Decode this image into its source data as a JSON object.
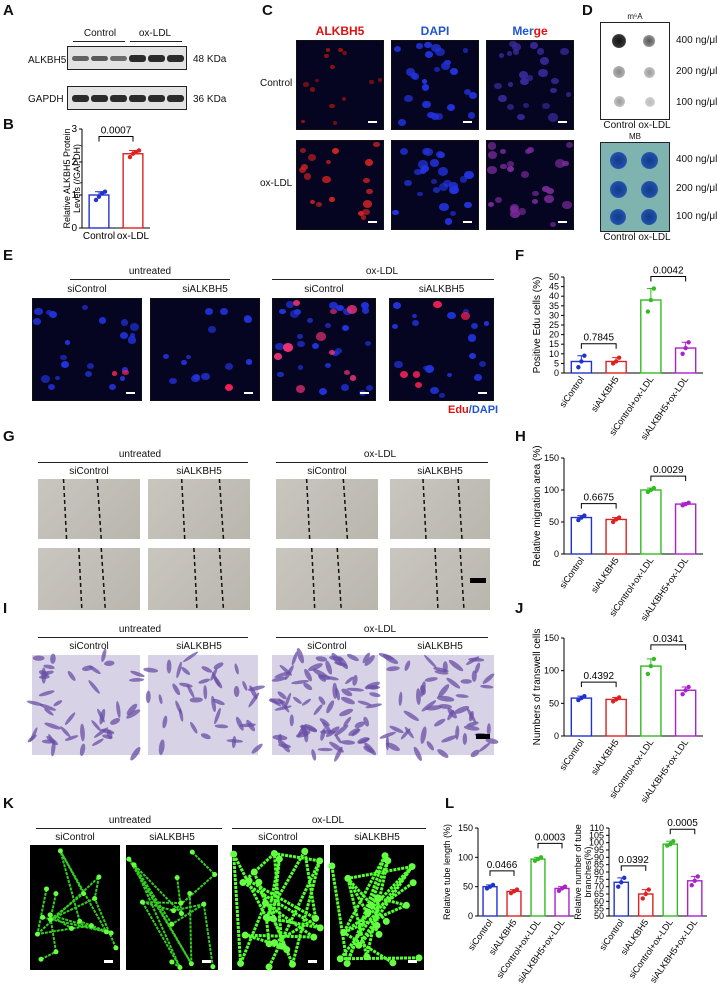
{
  "panels": {
    "A": "A",
    "B": "B",
    "C": "C",
    "D": "D",
    "E": "E",
    "F": "F",
    "G": "G",
    "H": "H",
    "I": "I",
    "J": "J",
    "K": "K",
    "L": "L"
  },
  "panelA": {
    "group_control": "Control",
    "group_oxldl": "ox-LDL",
    "row1": "ALKBH5",
    "row2": "GAPDH",
    "kda1": "48 KDa",
    "kda2": "36 KDa"
  },
  "panelC": {
    "col1": "ALKBH5",
    "col2": "DAPI",
    "col3_a": "Mer",
    "col3_b": "ge",
    "row1": "Control",
    "row2": "ox-LDL"
  },
  "panelD": {
    "top_title": "m⁶A",
    "bottom_title": "MB",
    "conc": [
      "400 ng/μl",
      "200 ng/μl",
      "100 ng/μl"
    ],
    "xlabel": "Control ox-LDL"
  },
  "panelE": {
    "untreated": "untreated",
    "oxldl": "ox-LDL",
    "sic": "siControl",
    "sia": "siALKBH5",
    "legend_a": "Edu",
    "legend_b": "/DAPI"
  },
  "panelG": {
    "untreated": "untreated",
    "oxldl": "ox-LDL",
    "sic": "siControl",
    "sia": "siALKBH5"
  },
  "panelI": {
    "untreated": "untreated",
    "oxldl": "ox-LDL",
    "sic": "siControl",
    "sia": "siALKBH5"
  },
  "panelK": {
    "untreated": "untreated",
    "oxldl": "ox-LDL",
    "sic": "siControl",
    "sia": "siALKBH5"
  },
  "chart_data": [
    {
      "id": "B",
      "type": "bar",
      "categories": [
        "Control",
        "ox-LDL"
      ],
      "values": [
        1.0,
        2.25
      ],
      "ylabel": "Relative ALKBH5 Protein Levels (/GAPDH)",
      "ylim": [
        0,
        3
      ],
      "yticks": [
        0,
        1,
        2,
        3
      ],
      "annotations": [
        {
          "text": "0.0007",
          "between": [
            0,
            1
          ]
        }
      ],
      "colors": [
        "#2233cc",
        "#dd2222"
      ],
      "points": [
        [
          0.85,
          0.95,
          1.05,
          1.1
        ],
        [
          2.15,
          2.25,
          2.3,
          2.35
        ]
      ]
    },
    {
      "id": "F",
      "type": "bar",
      "categories": [
        "siControl",
        "siALKBH5",
        "siControl+ox-LDL",
        "siALKBH5+ox-LDL"
      ],
      "values": [
        6,
        6,
        38,
        13
      ],
      "ylabel": "Positive Edu cells (%)",
      "ylim": [
        0,
        50
      ],
      "yticks": [
        0,
        5,
        10,
        15,
        20,
        25,
        30,
        35,
        40,
        45,
        50
      ],
      "annotations": [
        {
          "text": "0.7845",
          "between": [
            0,
            1
          ]
        },
        {
          "text": "0.0042",
          "between": [
            2,
            3
          ]
        }
      ],
      "colors": [
        "#2233cc",
        "#dd2222",
        "#33bb22",
        "#aa22cc"
      ],
      "points": [
        [
          3,
          6,
          9
        ],
        [
          5,
          6,
          8
        ],
        [
          32,
          38,
          44
        ],
        [
          10,
          13,
          16
        ]
      ]
    },
    {
      "id": "H",
      "type": "bar",
      "categories": [
        "siControl",
        "siALKBH5",
        "siControl+ox-LDL",
        "siALKBH5+ox-LDL"
      ],
      "values": [
        57,
        54,
        100,
        78
      ],
      "ylabel": "Relative migration area (%)",
      "ylim": [
        0,
        150
      ],
      "yticks": [
        0,
        50,
        100,
        150
      ],
      "annotations": [
        {
          "text": "0.6675",
          "between": [
            0,
            1
          ]
        },
        {
          "text": "0.0029",
          "between": [
            2,
            3
          ]
        }
      ],
      "colors": [
        "#2233cc",
        "#dd2222",
        "#33bb22",
        "#aa22cc"
      ],
      "points": [
        [
          53,
          57,
          60
        ],
        [
          50,
          54,
          57
        ],
        [
          97,
          100,
          103
        ],
        [
          76,
          78,
          80
        ]
      ]
    },
    {
      "id": "J",
      "type": "bar",
      "categories": [
        "siControl",
        "siALKBH5",
        "siControl+ox-LDL",
        "siALKBH5+ox-LDL"
      ],
      "values": [
        58,
        56,
        107,
        70
      ],
      "ylabel": "Numbers of transwell cells",
      "ylim": [
        0,
        150
      ],
      "yticks": [
        0,
        50,
        100,
        150
      ],
      "annotations": [
        {
          "text": "0.4392",
          "between": [
            0,
            1
          ]
        },
        {
          "text": "0.0341",
          "between": [
            2,
            3
          ]
        }
      ],
      "colors": [
        "#2233cc",
        "#dd2222",
        "#33bb22",
        "#aa22cc"
      ],
      "points": [
        [
          55,
          58,
          61
        ],
        [
          53,
          56,
          59
        ],
        [
          95,
          107,
          118
        ],
        [
          64,
          70,
          75
        ]
      ]
    },
    {
      "id": "L1",
      "type": "bar",
      "categories": [
        "siControl",
        "siALKBH5",
        "siControl+ox-LDL",
        "siALKBH5+ox-LDL"
      ],
      "values": [
        50,
        42,
        97,
        47
      ],
      "ylabel": "Relative tube length (%)",
      "ylim": [
        0,
        150
      ],
      "yticks": [
        0,
        50,
        100,
        150
      ],
      "annotations": [
        {
          "text": "0.0466",
          "between": [
            0,
            1
          ]
        },
        {
          "text": "0.0003",
          "between": [
            2,
            3
          ]
        }
      ],
      "colors": [
        "#2233cc",
        "#dd2222",
        "#33bb22",
        "#aa22cc"
      ],
      "points": [
        [
          47,
          50,
          53
        ],
        [
          39,
          42,
          45
        ],
        [
          94,
          97,
          100
        ],
        [
          43,
          47,
          50
        ]
      ]
    },
    {
      "id": "L2",
      "type": "bar",
      "categories": [
        "siControl",
        "siALKBH5",
        "siControl+ox-LDL",
        "siALKBH5+ox-LDL"
      ],
      "values": [
        73,
        65,
        99,
        74
      ],
      "ylabel": "Relative number of tube branches(%)",
      "ylim": [
        50,
        110
      ],
      "yticks": [
        50,
        55,
        60,
        65,
        70,
        75,
        80,
        85,
        90,
        95,
        100,
        105,
        110
      ],
      "annotations": [
        {
          "text": "0.0392",
          "between": [
            0,
            1
          ]
        },
        {
          "text": "0.0005",
          "between": [
            2,
            3
          ]
        }
      ],
      "colors": [
        "#2233cc",
        "#dd2222",
        "#33bb22",
        "#aa22cc"
      ],
      "points": [
        [
          70,
          73,
          76
        ],
        [
          62,
          65,
          68
        ],
        [
          98,
          99,
          101
        ],
        [
          71,
          74,
          77
        ]
      ]
    }
  ]
}
